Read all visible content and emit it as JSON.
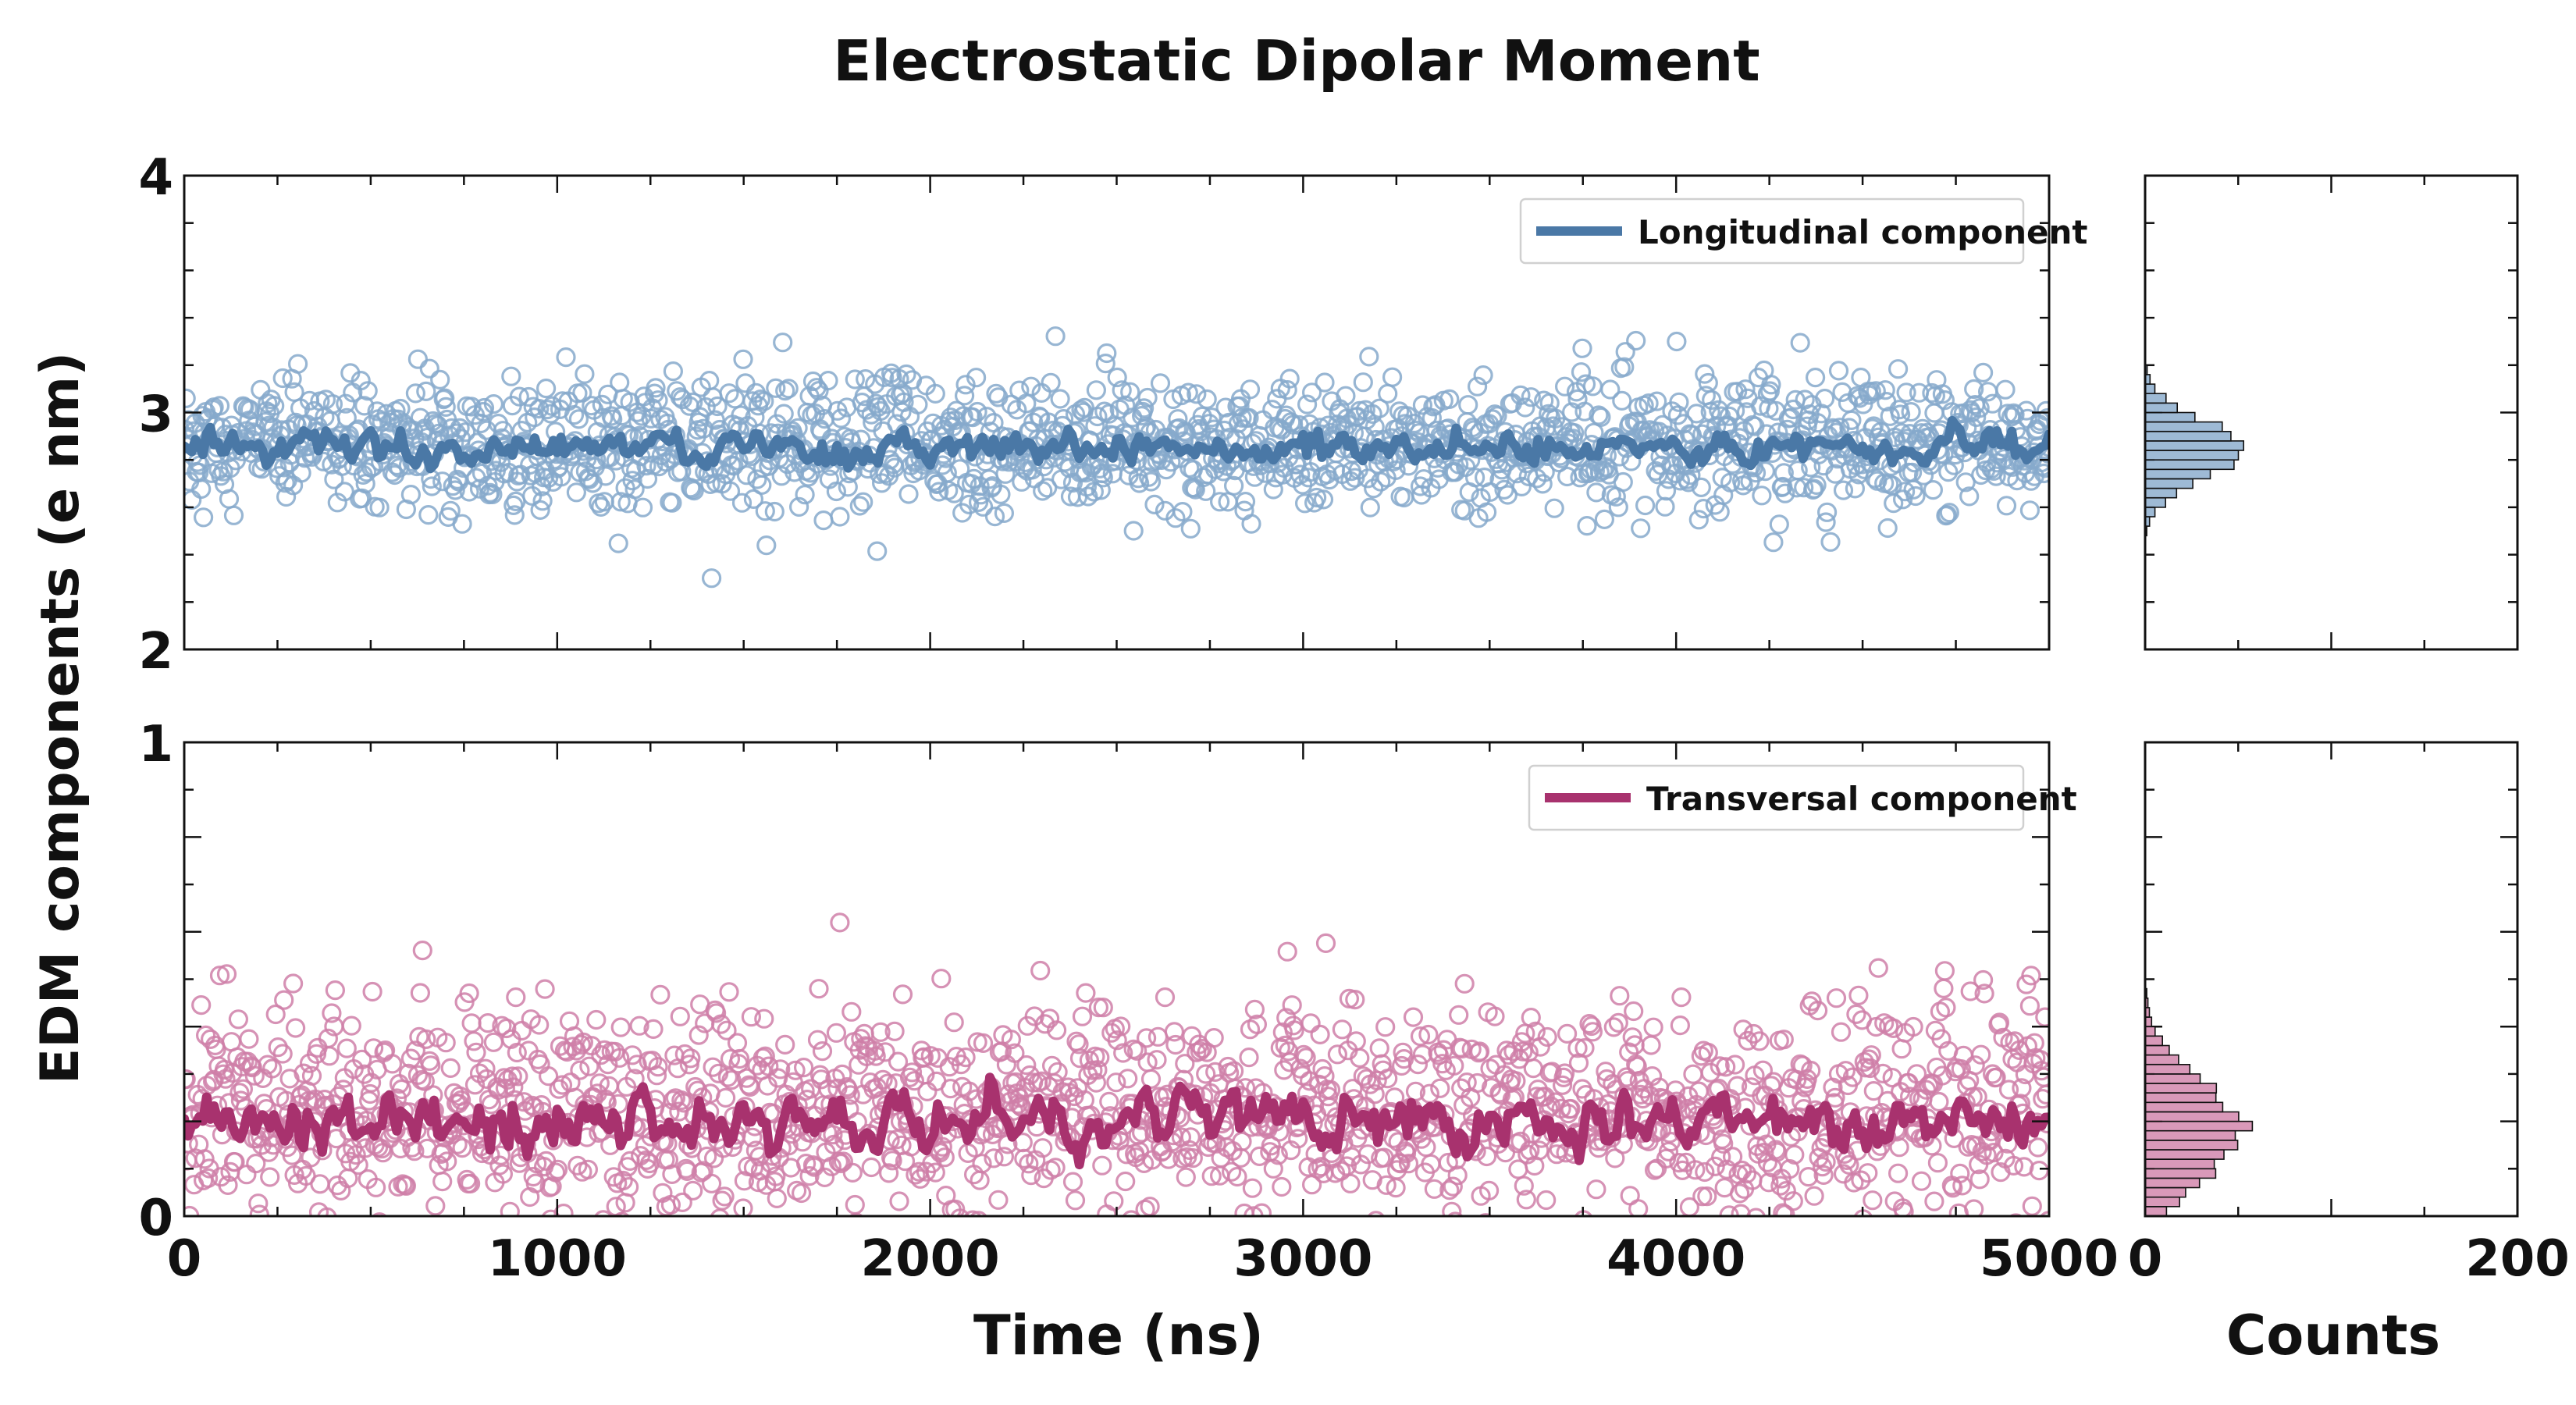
{
  "title": "Electrostatic Dipolar Moment",
  "chart_data": {
    "type": "scatter",
    "title": "Electrostatic Dipolar Moment",
    "ylabel": "EDM components (e nm)",
    "panels": [
      {
        "id": "longitudinal",
        "series_name": "Longitudinal component",
        "color": "#4a78a6",
        "marker_color": "#86a9cb",
        "xlim": [
          0,
          5000
        ],
        "ylim": [
          2,
          4
        ],
        "yticks": [
          "2",
          "3",
          "4"
        ],
        "scatter_mean": 2.86,
        "scatter_sd": 0.14,
        "running_mean": 2.86,
        "running_sd": 0.04,
        "n_points": 1600,
        "hist_mean": 2.84,
        "hist_sd": 0.12,
        "hist_peak": 55
      },
      {
        "id": "transversal",
        "series_name": "Transversal component",
        "color": "#a8326e",
        "marker_color": "#cf7fa8",
        "xlim": [
          0,
          5000
        ],
        "ylim": [
          0,
          1
        ],
        "yticks": [
          "0",
          "1"
        ],
        "scatter_mean": 0.22,
        "scatter_sd": 0.12,
        "running_mean": 0.2,
        "running_sd": 0.035,
        "n_points": 1600,
        "hist_mean": 0.18,
        "hist_sd": 0.1,
        "hist_peak": 53
      }
    ],
    "x_main": {
      "label": "Time (ns)",
      "ticks": [
        "0",
        "1000",
        "2000",
        "3000",
        "4000",
        "5000"
      ],
      "range": [
        0,
        5000
      ]
    },
    "x_hist": {
      "label": "Counts",
      "ticks": [
        "0",
        "200"
      ],
      "range": [
        0,
        200
      ]
    }
  }
}
